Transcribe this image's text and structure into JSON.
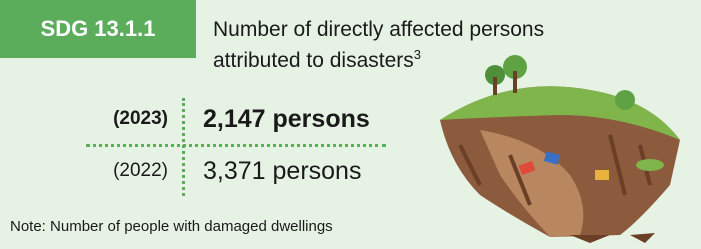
{
  "header": {
    "badge": "SDG 13.1.1",
    "title_line1": "Number of directly affected persons",
    "title_line2": "attributed to disasters",
    "footnote_mark": "3"
  },
  "rows": [
    {
      "year": "(2023)",
      "value": "2,147 persons"
    },
    {
      "year": "(2022)",
      "value": "3,371 persons"
    }
  ],
  "note": "Note: Number of people with damaged dwellings"
}
